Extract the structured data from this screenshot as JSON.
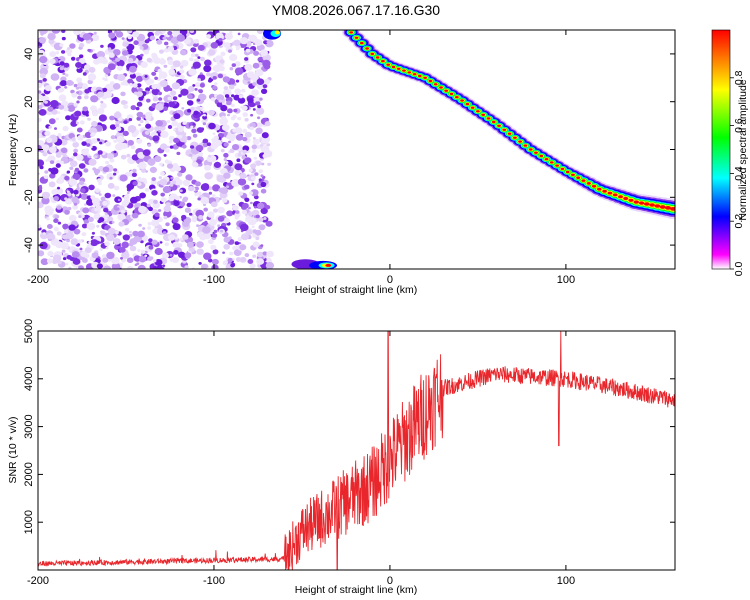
{
  "title": "YM08.2026.067.17.16.G30",
  "chart_data": [
    {
      "type": "heatmap",
      "xlabel": "Height of straight line (km)",
      "ylabel": "Frequency (Hz)",
      "xlim": [
        -200,
        162
      ],
      "ylim": [
        -50,
        50
      ],
      "xticks": [
        -200,
        -100,
        0,
        100
      ],
      "yticks": [
        -40,
        -20,
        0,
        20,
        40
      ],
      "noise_region_x": [
        -200,
        -68
      ],
      "ridge": [
        {
          "x": -22,
          "y": 49
        },
        {
          "x": -10,
          "y": 40
        },
        {
          "x": 0,
          "y": 35
        },
        {
          "x": 20,
          "y": 30
        },
        {
          "x": 40,
          "y": 21
        },
        {
          "x": 60,
          "y": 11
        },
        {
          "x": 80,
          "y": 0
        },
        {
          "x": 100,
          "y": -9
        },
        {
          "x": 120,
          "y": -17
        },
        {
          "x": 140,
          "y": -22
        },
        {
          "x": 162,
          "y": -25
        }
      ],
      "colorbar": {
        "label": "Normalized spectral amplitude",
        "ticks": [
          0.0,
          0.2,
          0.4,
          0.6,
          0.8
        ],
        "range": [
          0,
          1
        ],
        "colors": [
          "#ffffff",
          "#ff00ff",
          "#0000ff",
          "#00ffff",
          "#00ff00",
          "#ffff00",
          "#ff0000"
        ]
      }
    },
    {
      "type": "line",
      "xlabel": "Height of straight line (km)",
      "ylabel": "SNR (10 * v/v)",
      "xlim": [
        -200,
        162
      ],
      "ylim": [
        0,
        5000
      ],
      "xticks": [
        -200,
        -100,
        0,
        100
      ],
      "yticks": [
        1000,
        2000,
        3000,
        4000,
        5000
      ],
      "color": "#e8262b",
      "trend": [
        {
          "x": -200,
          "y": 130
        },
        {
          "x": -60,
          "y": 230
        },
        {
          "x": -50,
          "y": 800
        },
        {
          "x": -30,
          "y": 1300
        },
        {
          "x": -10,
          "y": 1800
        },
        {
          "x": 10,
          "y": 2800
        },
        {
          "x": 30,
          "y": 3800
        },
        {
          "x": 60,
          "y": 4100
        },
        {
          "x": 100,
          "y": 4000
        },
        {
          "x": 130,
          "y": 3800
        },
        {
          "x": 162,
          "y": 3550
        }
      ],
      "spikes": [
        {
          "x": -1,
          "y": 5000
        },
        {
          "x": 97,
          "y": 5000
        },
        {
          "x": 96,
          "y": 2600
        },
        {
          "x": -30,
          "y": 0
        }
      ]
    }
  ]
}
